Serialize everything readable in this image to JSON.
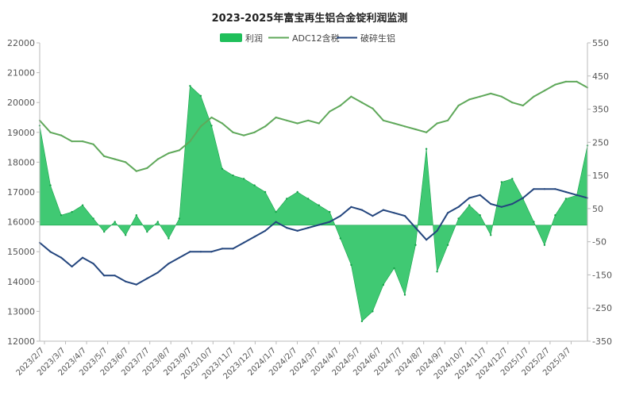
{
  "chart_data": {
    "type": "line",
    "title": "2023-2025年富宝再生铝合金锭利润监测",
    "legend": {
      "placement": "top-center",
      "items": [
        {
          "key": "profit",
          "name": "利润",
          "color": "#1fbf5a",
          "kind": "area"
        },
        {
          "key": "adc12",
          "name": "ADC12含税",
          "color": "#5fa85a",
          "kind": "line"
        },
        {
          "key": "scrap",
          "name": "破碎生铝",
          "color": "#24467e",
          "kind": "line"
        }
      ]
    },
    "y_left": {
      "min": 12000,
      "max": 22000,
      "ticks": [
        "12000",
        "13000",
        "14000",
        "15000",
        "16000",
        "17000",
        "18000",
        "19000",
        "20000",
        "21000",
        "22000"
      ]
    },
    "y_right": {
      "min": -350,
      "max": 550,
      "ticks": [
        "-350",
        "-250",
        "-150",
        "-50",
        "50",
        "150",
        "250",
        "350",
        "450",
        "550"
      ]
    },
    "grid": false,
    "x_labels": [
      "2023/2/7",
      "2023/3/7",
      "2023/4/7",
      "2023/5/7",
      "2023/6/7",
      "2023/7/7",
      "2023/8/7",
      "2023/9/7",
      "2023/10/7",
      "2023/11/7",
      "2023/12/7",
      "2024/1/7",
      "2024/2/7",
      "2024/3/7",
      "2024/4/7",
      "2024/5/7",
      "2024/6/7",
      "2024/7/7",
      "2024/8/7",
      "2024/9/7",
      "2024/10/7",
      "2024/11/7",
      "2024/12/7",
      "2025/1/7",
      "2025/2/7",
      "2025/3/7"
    ],
    "x": [
      "2023/2/7",
      "2023/2/21",
      "2023/3/7",
      "2023/3/21",
      "2023/4/7",
      "2023/4/21",
      "2023/5/7",
      "2023/5/21",
      "2023/6/7",
      "2023/6/21",
      "2023/7/7",
      "2023/7/21",
      "2023/8/7",
      "2023/8/21",
      "2023/9/7",
      "2023/9/21",
      "2023/10/7",
      "2023/10/21",
      "2023/11/7",
      "2023/11/21",
      "2023/12/7",
      "2023/12/21",
      "2024/1/7",
      "2024/1/21",
      "2024/2/7",
      "2024/2/21",
      "2024/3/7",
      "2024/3/21",
      "2024/4/7",
      "2024/4/21",
      "2024/5/7",
      "2024/5/21",
      "2024/6/7",
      "2024/6/21",
      "2024/7/7",
      "2024/7/21",
      "2024/8/7",
      "2024/8/21",
      "2024/9/7",
      "2024/9/21",
      "2024/10/7",
      "2024/10/21",
      "2024/11/7",
      "2024/11/21",
      "2024/12/7",
      "2024/12/21",
      "2025/1/7",
      "2025/1/21",
      "2025/2/7",
      "2025/2/21",
      "2025/3/7",
      "2025/3/21"
    ],
    "series": [
      {
        "key": "adc12",
        "axis": "left",
        "values": [
          19400,
          19000,
          18900,
          18700,
          18700,
          18600,
          18200,
          18100,
          18000,
          17700,
          17800,
          18100,
          18300,
          18400,
          18700,
          19200,
          19500,
          19300,
          19000,
          18900,
          19000,
          19200,
          19500,
          19400,
          19300,
          19400,
          19300,
          19700,
          19900,
          20200,
          20000,
          19800,
          19400,
          19300,
          19200,
          19100,
          19000,
          19300,
          19400,
          19900,
          20100,
          20200,
          20300,
          20200,
          20000,
          19900,
          20200,
          20400,
          20600,
          20700,
          20700,
          20500
        ]
      },
      {
        "key": "scrap",
        "axis": "left",
        "values": [
          15300,
          15000,
          14800,
          14500,
          14800,
          14600,
          14200,
          14200,
          14000,
          13900,
          14100,
          14300,
          14600,
          14800,
          15000,
          15000,
          15000,
          15100,
          15100,
          15300,
          15500,
          15700,
          16000,
          15800,
          15700,
          15800,
          15900,
          16000,
          16200,
          16500,
          16400,
          16200,
          16400,
          16300,
          16200,
          15800,
          15400,
          15700,
          16300,
          16500,
          16800,
          16900,
          16600,
          16500,
          16600,
          16800,
          17100,
          17100,
          17100,
          17000,
          16900,
          16800
        ]
      },
      {
        "key": "profit",
        "axis": "right",
        "values": [
          300,
          120,
          30,
          40,
          60,
          20,
          -20,
          10,
          -30,
          30,
          -20,
          10,
          -40,
          20,
          420,
          390,
          300,
          170,
          150,
          140,
          120,
          100,
          40,
          80,
          100,
          80,
          60,
          40,
          -40,
          -120,
          -290,
          -260,
          -180,
          -130,
          -210,
          -60,
          230,
          -140,
          -60,
          20,
          60,
          30,
          -30,
          130,
          140,
          80,
          10,
          -60,
          30,
          80,
          90,
          240
        ]
      }
    ]
  }
}
